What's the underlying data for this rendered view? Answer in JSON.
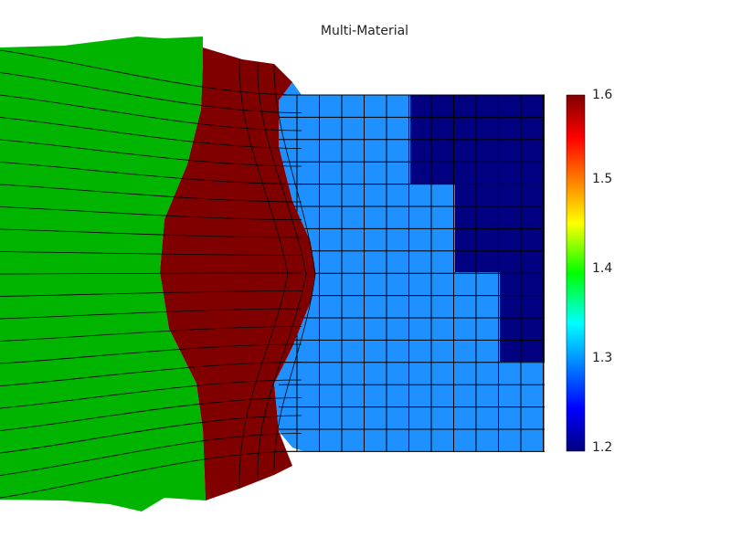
{
  "title": "Multi-Material",
  "colorbar": {
    "min": 1.2,
    "max": 1.6,
    "ticks": [
      "1.6",
      "1.5",
      "1.4",
      "1.3",
      "1.2"
    ],
    "colormap": "jet"
  },
  "colors": {
    "background": "#ffffff",
    "material_left": "#00b400",
    "material_middle": "#800000",
    "material_right": "#1e90ff",
    "material_right_dense": "#000080",
    "mesh_lines": "#000000"
  }
}
